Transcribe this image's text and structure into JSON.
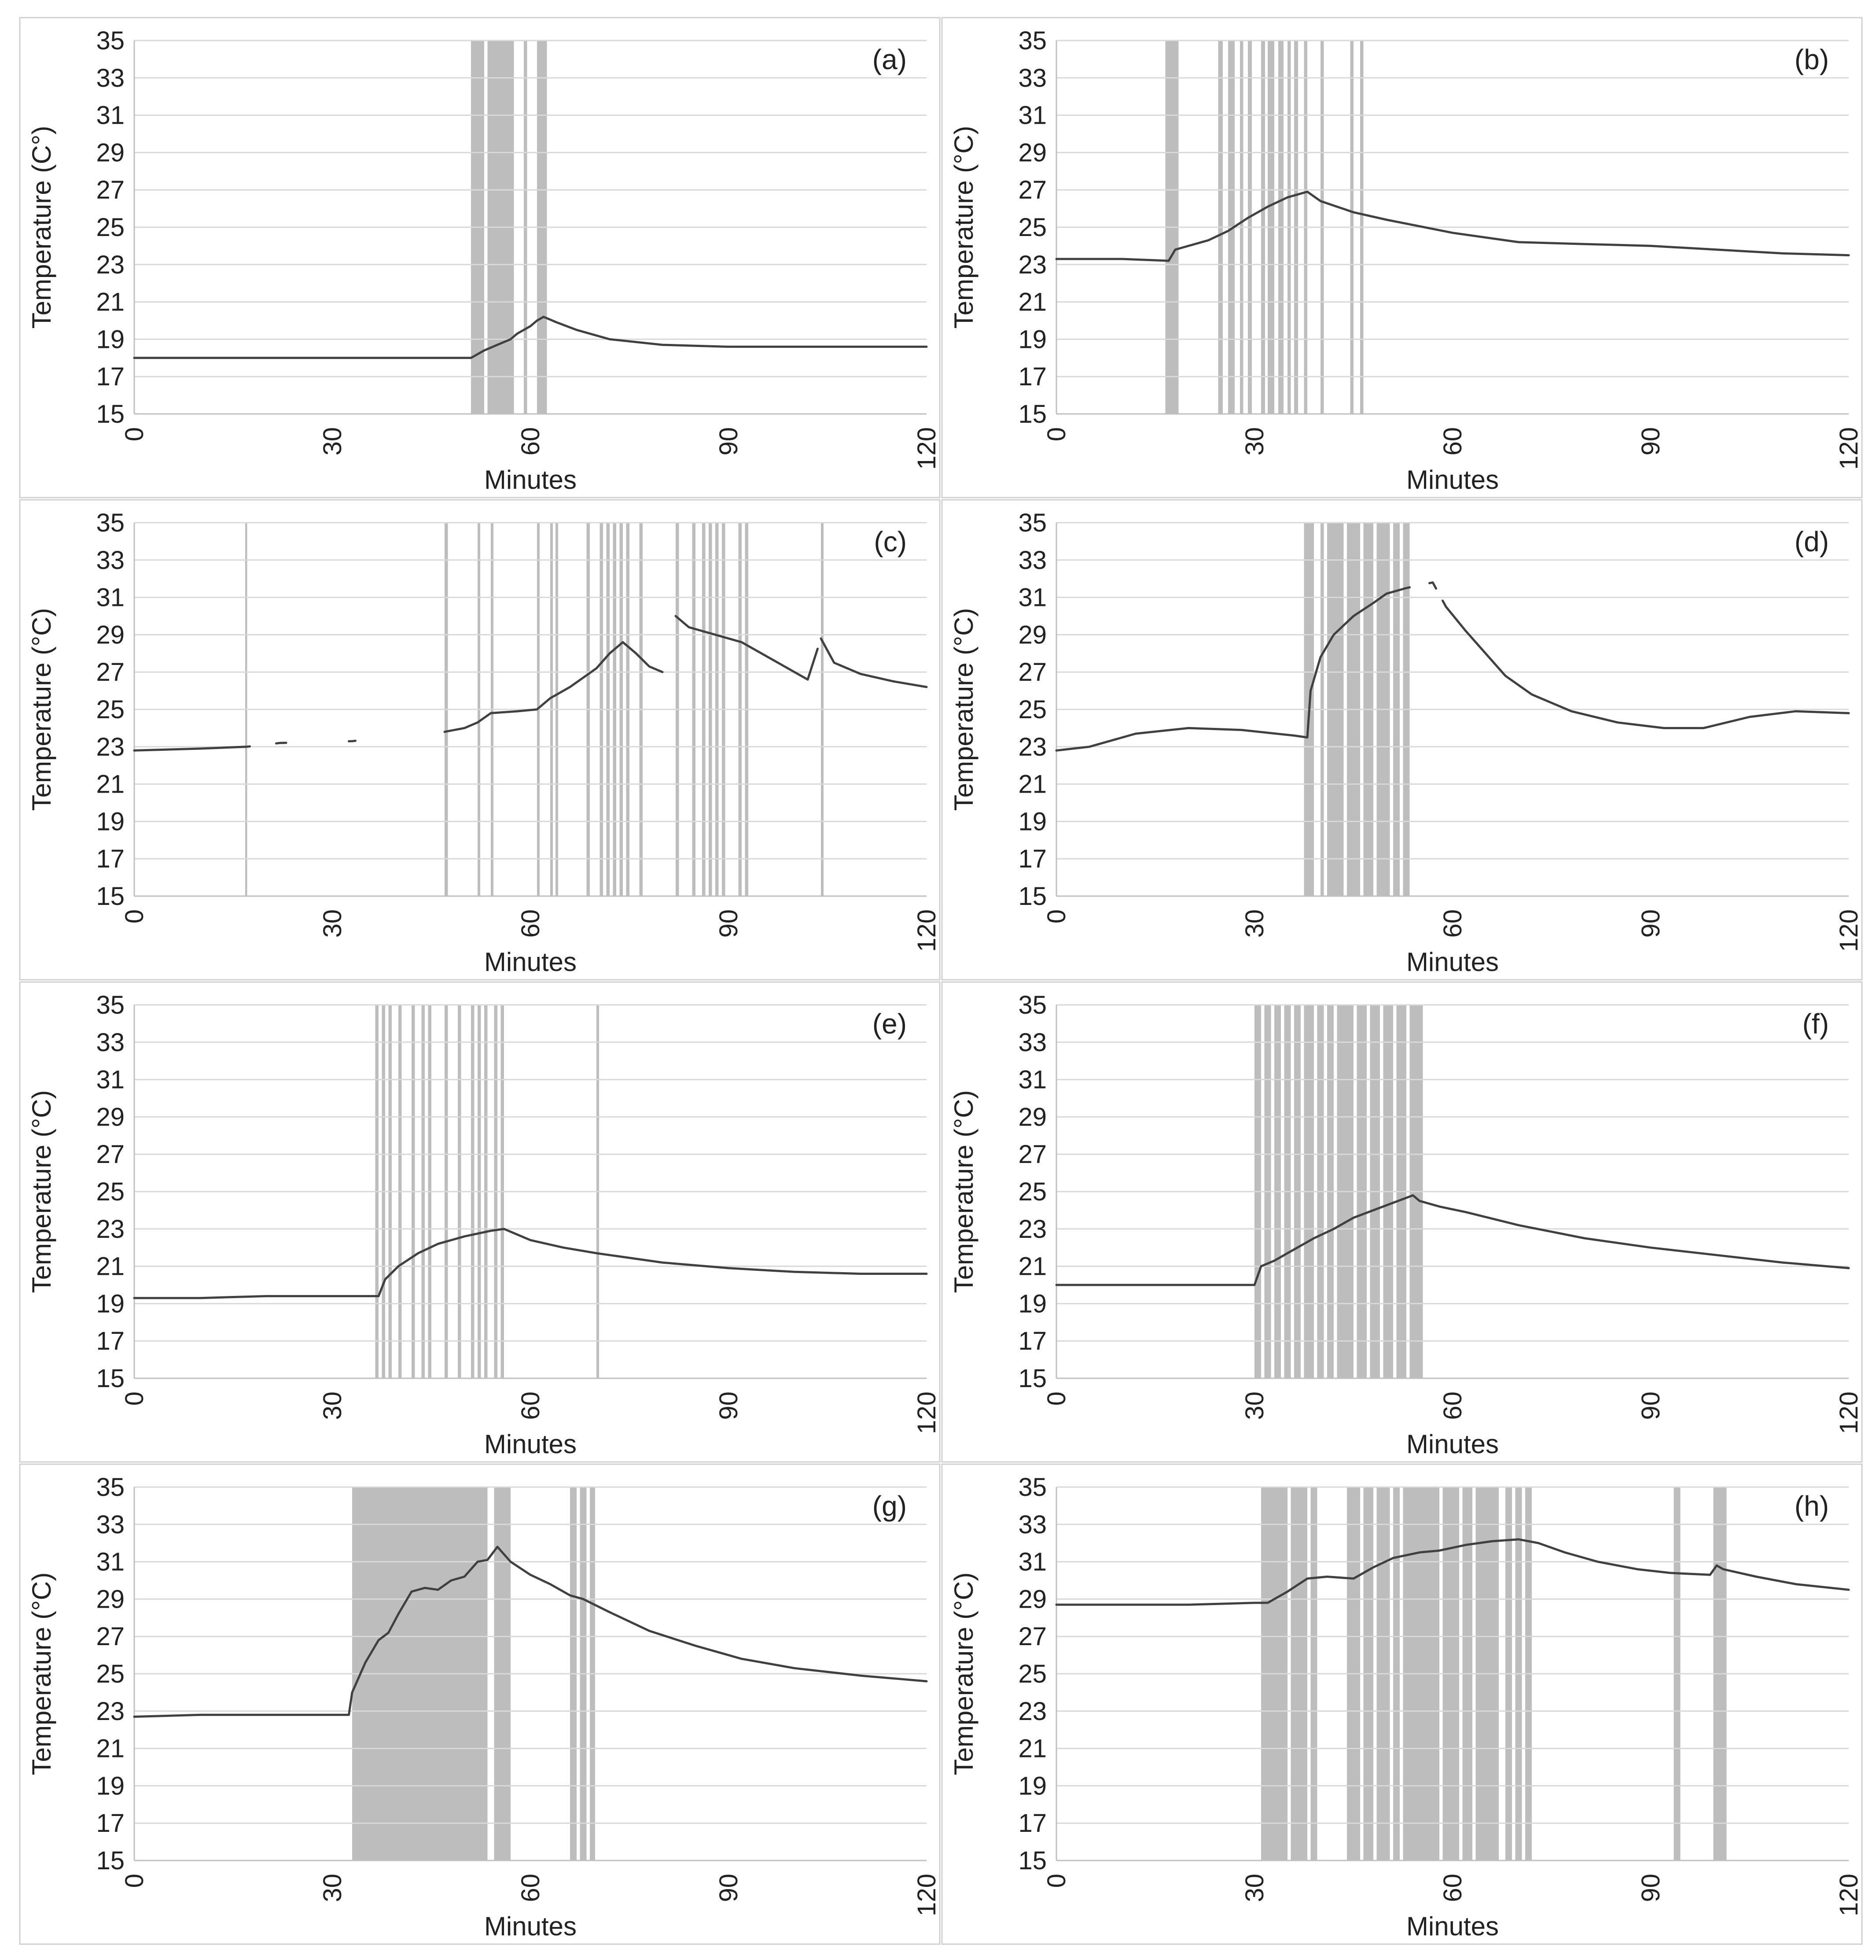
{
  "figure": {
    "panels": 8,
    "colors": {
      "line": "#404040",
      "shade": "#bdbdbd",
      "grid": "#d9d9d9",
      "frame": "#d0d0d0",
      "text": "#222222"
    }
  },
  "chart_data": [
    {
      "panel_label": "(a)",
      "type": "line",
      "title": "",
      "xlabel": "Minutes",
      "ylabel": "Temperature (C°)",
      "xlim": [
        0,
        120
      ],
      "ylim": [
        15,
        35
      ],
      "x_ticks": [
        "0",
        "30",
        "60",
        "90",
        "120"
      ],
      "y_ticks": [
        "15",
        "17",
        "19",
        "21",
        "23",
        "25",
        "27",
        "29",
        "31",
        "33",
        "35"
      ],
      "grid": true,
      "shaded_intervals": [
        [
          51,
          53
        ],
        [
          53.5,
          57.5
        ],
        [
          59,
          59.5
        ],
        [
          61,
          62.5
        ]
      ],
      "series": [
        {
          "name": "Temperature",
          "x": [
            0,
            20,
            40,
            51,
            53,
            55,
            57,
            58,
            60,
            61,
            62,
            64,
            67,
            72,
            80,
            90,
            100,
            110,
            120
          ],
          "y": [
            18,
            18,
            18,
            18,
            18.4,
            18.7,
            19,
            19.3,
            19.7,
            20.0,
            20.2,
            19.9,
            19.5,
            19.0,
            18.7,
            18.6,
            18.6,
            18.6,
            18.6
          ],
          "segments": [
            [
              0,
              120
            ]
          ]
        }
      ]
    },
    {
      "panel_label": "(b)",
      "type": "line",
      "title": "",
      "xlabel": "Minutes",
      "ylabel": "Temperature (°C)",
      "xlim": [
        0,
        120
      ],
      "ylim": [
        15,
        35
      ],
      "x_ticks": [
        "0",
        "30",
        "60",
        "90",
        "120"
      ],
      "y_ticks": [
        "15",
        "17",
        "19",
        "21",
        "23",
        "25",
        "27",
        "29",
        "31",
        "33",
        "35"
      ],
      "grid": true,
      "shaded_intervals": [
        [
          16.5,
          18.5
        ],
        [
          24.5,
          25.2
        ],
        [
          26,
          27
        ],
        [
          27.8,
          28.3
        ],
        [
          29,
          29.6
        ],
        [
          31,
          31.6
        ],
        [
          32,
          33
        ],
        [
          33.6,
          34.4
        ],
        [
          35,
          35.5
        ],
        [
          36,
          36.6
        ],
        [
          37.5,
          38
        ],
        [
          40,
          40.5
        ],
        [
          44.5,
          45
        ],
        [
          46,
          46.5
        ]
      ],
      "series": [
        {
          "name": "Temperature",
          "x": [
            0,
            10,
            17,
            18,
            20,
            23,
            26,
            29,
            32,
            35,
            37,
            38,
            40,
            45,
            50,
            60,
            70,
            80,
            90,
            100,
            110,
            120
          ],
          "y": [
            23.3,
            23.3,
            23.2,
            23.8,
            24.0,
            24.3,
            24.8,
            25.5,
            26.1,
            26.6,
            26.8,
            26.9,
            26.4,
            25.8,
            25.4,
            24.7,
            24.2,
            24.1,
            24.0,
            23.8,
            23.6,
            23.5
          ],
          "segments": [
            [
              0,
              120
            ]
          ]
        }
      ]
    },
    {
      "panel_label": "(c)",
      "type": "line",
      "title": "",
      "xlabel": "Minutes",
      "ylabel": "Temperature (°C)",
      "xlim": [
        0,
        120
      ],
      "ylim": [
        15,
        35
      ],
      "x_ticks": [
        "0",
        "30",
        "60",
        "90",
        "120"
      ],
      "y_ticks": [
        "15",
        "17",
        "19",
        "21",
        "23",
        "25",
        "27",
        "29",
        "31",
        "33",
        "35"
      ],
      "grid": true,
      "shaded_intervals": [
        [
          16.8,
          17.1
        ],
        [
          47,
          47.5
        ],
        [
          52,
          52.4
        ],
        [
          54,
          54.4
        ],
        [
          61,
          61.4
        ],
        [
          63,
          63.4
        ],
        [
          63.8,
          64.2
        ],
        [
          68.5,
          69
        ],
        [
          70.5,
          71
        ],
        [
          71.5,
          72
        ],
        [
          72.5,
          73
        ],
        [
          73.5,
          74
        ],
        [
          74.5,
          75
        ],
        [
          76.5,
          77
        ],
        [
          82,
          82.5
        ],
        [
          84.5,
          85
        ],
        [
          86,
          86.5
        ],
        [
          87,
          87.5
        ],
        [
          88,
          88.5
        ],
        [
          89,
          89.5
        ],
        [
          91.5,
          92
        ],
        [
          92.5,
          93
        ],
        [
          104,
          104.4
        ]
      ],
      "series": [
        {
          "name": "Temperature",
          "x": [
            0,
            10,
            17,
            22,
            33,
            47,
            50,
            52,
            54,
            58,
            61,
            63,
            66,
            70,
            72,
            74,
            76,
            78,
            80,
            82,
            84,
            88,
            92,
            97,
            102,
            104,
            106,
            110,
            115,
            120
          ],
          "y": [
            22.8,
            22.9,
            23.0,
            23.2,
            23.3,
            23.8,
            24.0,
            24.3,
            24.8,
            24.9,
            25.0,
            25.6,
            26.2,
            27.2,
            28.0,
            28.6,
            28.0,
            27.3,
            27.0,
            30.0,
            29.4,
            29.0,
            28.6,
            27.6,
            26.6,
            28.8,
            27.5,
            26.9,
            26.5,
            26.2
          ],
          "segments": [
            [
              0,
              17.5
            ],
            [
              21.5,
              23
            ],
            [
              32.5,
              33.5
            ],
            [
              47,
              80
            ],
            [
              82,
              103.5
            ],
            [
              104,
              120
            ]
          ]
        }
      ]
    },
    {
      "panel_label": "(d)",
      "type": "line",
      "title": "",
      "xlabel": "Minutes",
      "ylabel": "Temperature (°C)",
      "xlim": [
        0,
        120
      ],
      "ylim": [
        15,
        35
      ],
      "x_ticks": [
        "0",
        "30",
        "60",
        "90",
        "120"
      ],
      "y_ticks": [
        "15",
        "17",
        "19",
        "21",
        "23",
        "25",
        "27",
        "29",
        "31",
        "33",
        "35"
      ],
      "grid": true,
      "shaded_intervals": [
        [
          37.5,
          39
        ],
        [
          40,
          40.5
        ],
        [
          41,
          43.5
        ],
        [
          44,
          46
        ],
        [
          46.5,
          48
        ],
        [
          48.5,
          50.5
        ],
        [
          51,
          52
        ],
        [
          52.5,
          53.5
        ]
      ],
      "series": [
        {
          "name": "Temperature",
          "x": [
            0,
            5,
            12,
            20,
            28,
            36,
            38,
            38.5,
            40,
            42,
            45,
            48,
            50,
            53,
            57,
            59,
            62,
            65,
            68,
            72,
            78,
            85,
            92,
            98,
            105,
            112,
            120
          ],
          "y": [
            22.8,
            23.0,
            23.7,
            24.0,
            23.9,
            23.6,
            23.5,
            26.0,
            27.8,
            29.0,
            30.0,
            30.7,
            31.2,
            31.5,
            31.8,
            30.5,
            29.2,
            28.0,
            26.8,
            25.8,
            24.9,
            24.3,
            24.0,
            24.0,
            24.6,
            24.9,
            24.8
          ],
          "segments": [
            [
              0,
              53.5
            ],
            [
              56.5,
              57.5
            ],
            [
              58.5,
              120
            ]
          ]
        }
      ]
    },
    {
      "panel_label": "(e)",
      "type": "line",
      "title": "",
      "xlabel": "Minutes",
      "ylabel": "Temperature (°C)",
      "xlim": [
        0,
        120
      ],
      "ylim": [
        15,
        35
      ],
      "x_ticks": [
        "0",
        "30",
        "60",
        "90",
        "120"
      ],
      "y_ticks": [
        "15",
        "17",
        "19",
        "21",
        "23",
        "25",
        "27",
        "29",
        "31",
        "33",
        "35"
      ],
      "grid": true,
      "shaded_intervals": [
        [
          36.5,
          37
        ],
        [
          37.5,
          38
        ],
        [
          38.5,
          39
        ],
        [
          40,
          40.5
        ],
        [
          42,
          42.5
        ],
        [
          43.5,
          44
        ],
        [
          44.5,
          45
        ],
        [
          47,
          47.5
        ],
        [
          49,
          49.5
        ],
        [
          51,
          51.5
        ],
        [
          52,
          52.5
        ],
        [
          53,
          53.5
        ],
        [
          54.5,
          55
        ],
        [
          55.5,
          56
        ],
        [
          70,
          70.4
        ]
      ],
      "series": [
        {
          "name": "Temperature",
          "x": [
            0,
            10,
            20,
            30,
            37,
            38,
            40,
            43,
            46,
            50,
            54,
            56,
            60,
            65,
            70,
            80,
            90,
            100,
            110,
            120
          ],
          "y": [
            19.3,
            19.3,
            19.4,
            19.4,
            19.4,
            20.3,
            21.0,
            21.7,
            22.2,
            22.6,
            22.9,
            23.0,
            22.4,
            22.0,
            21.7,
            21.2,
            20.9,
            20.7,
            20.6,
            20.6
          ],
          "segments": [
            [
              0,
              120
            ]
          ]
        }
      ]
    },
    {
      "panel_label": "(f)",
      "type": "line",
      "title": "",
      "xlabel": "Minutes",
      "ylabel": "Temperature (°C)",
      "xlim": [
        0,
        120
      ],
      "ylim": [
        15,
        35
      ],
      "x_ticks": [
        "0",
        "30",
        "60",
        "90",
        "120"
      ],
      "y_ticks": [
        "15",
        "17",
        "19",
        "21",
        "23",
        "25",
        "27",
        "29",
        "31",
        "33",
        "35"
      ],
      "grid": true,
      "shaded_intervals": [
        [
          30,
          31
        ],
        [
          31.5,
          32.5
        ],
        [
          33,
          34
        ],
        [
          34.5,
          35.5
        ],
        [
          36,
          37
        ],
        [
          37.5,
          39
        ],
        [
          39.5,
          40.5
        ],
        [
          41,
          42
        ],
        [
          42.5,
          45
        ],
        [
          45.5,
          47
        ],
        [
          47.5,
          49
        ],
        [
          49.5,
          51
        ],
        [
          51.5,
          53
        ],
        [
          53.5,
          55.5
        ]
      ],
      "series": [
        {
          "name": "Temperature",
          "x": [
            0,
            10,
            20,
            30,
            31,
            33,
            36,
            39,
            42,
            45,
            48,
            51,
            54,
            55,
            58,
            62,
            70,
            80,
            90,
            100,
            110,
            120
          ],
          "y": [
            20.0,
            20.0,
            20.0,
            20.0,
            21.0,
            21.3,
            21.9,
            22.5,
            23.0,
            23.6,
            24.0,
            24.4,
            24.8,
            24.5,
            24.2,
            23.9,
            23.2,
            22.5,
            22.0,
            21.6,
            21.2,
            20.9
          ],
          "segments": [
            [
              0,
              120
            ]
          ]
        }
      ]
    },
    {
      "panel_label": "(g)",
      "type": "line",
      "title": "",
      "xlabel": "Minutes",
      "ylabel": "Temperature (°C)",
      "xlim": [
        0,
        120
      ],
      "ylim": [
        15,
        35
      ],
      "x_ticks": [
        "0",
        "30",
        "60",
        "90",
        "120"
      ],
      "y_ticks": [
        "15",
        "17",
        "19",
        "21",
        "23",
        "25",
        "27",
        "29",
        "31",
        "33",
        "35"
      ],
      "grid": true,
      "shaded_intervals": [
        [
          33,
          53.5
        ],
        [
          54.5,
          57
        ],
        [
          66,
          67
        ],
        [
          67.5,
          68.5
        ],
        [
          69,
          69.8
        ]
      ],
      "series": [
        {
          "name": "Temperature",
          "x": [
            0,
            10,
            20,
            32.5,
            33,
            35,
            37,
            38.5,
            40,
            42,
            44,
            46,
            48,
            50,
            52,
            53.5,
            55,
            57,
            60,
            63,
            66,
            68,
            72,
            78,
            85,
            92,
            100,
            110,
            120
          ],
          "y": [
            22.7,
            22.8,
            22.8,
            22.8,
            24.0,
            25.6,
            26.8,
            27.2,
            28.2,
            29.4,
            29.6,
            29.5,
            30.0,
            30.2,
            31.0,
            31.1,
            31.8,
            31.0,
            30.3,
            29.8,
            29.2,
            29.0,
            28.3,
            27.3,
            26.5,
            25.8,
            25.3,
            24.9,
            24.6
          ],
          "segments": [
            [
              0,
              120
            ]
          ]
        }
      ]
    },
    {
      "panel_label": "(h)",
      "type": "line",
      "title": "",
      "xlabel": "Minutes",
      "ylabel": "Temperature (°C)",
      "xlim": [
        0,
        120
      ],
      "ylim": [
        15,
        35
      ],
      "x_ticks": [
        "0",
        "30",
        "60",
        "90",
        "120"
      ],
      "y_ticks": [
        "15",
        "17",
        "19",
        "21",
        "23",
        "25",
        "27",
        "29",
        "31",
        "33",
        "35"
      ],
      "grid": true,
      "shaded_intervals": [
        [
          31,
          35
        ],
        [
          35.5,
          38
        ],
        [
          38.5,
          39.5
        ],
        [
          44,
          46
        ],
        [
          46.5,
          48
        ],
        [
          48.5,
          50.5
        ],
        [
          51,
          52
        ],
        [
          52.5,
          58
        ],
        [
          58.5,
          61
        ],
        [
          61.5,
          63
        ],
        [
          63.5,
          67
        ],
        [
          68,
          69
        ],
        [
          69.5,
          70.5
        ],
        [
          71,
          72
        ],
        [
          93.5,
          94.5
        ],
        [
          99.5,
          101.5
        ]
      ],
      "series": [
        {
          "name": "Temperature",
          "x": [
            0,
            10,
            20,
            30,
            32,
            35,
            38,
            41,
            45,
            48,
            51,
            55,
            58,
            62,
            66,
            70,
            73,
            77,
            82,
            88,
            93,
            99,
            100,
            101,
            106,
            112,
            120
          ],
          "y": [
            28.7,
            28.7,
            28.7,
            28.8,
            28.8,
            29.4,
            30.1,
            30.2,
            30.1,
            30.7,
            31.2,
            31.5,
            31.6,
            31.9,
            32.1,
            32.2,
            32.0,
            31.5,
            31.0,
            30.6,
            30.4,
            30.3,
            30.8,
            30.6,
            30.2,
            29.8,
            29.5
          ],
          "segments": [
            [
              0,
              120
            ]
          ]
        }
      ]
    }
  ]
}
